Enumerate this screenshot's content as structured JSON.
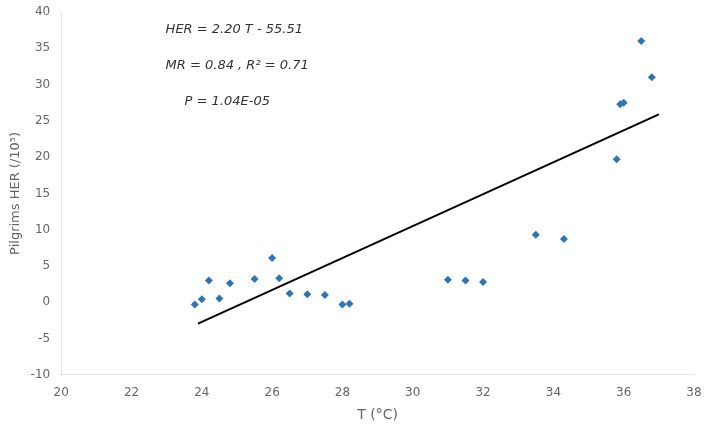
{
  "chart_data": {
    "type": "scatter",
    "xlabel": "T (°C)",
    "ylabel": "Pilgrims HER (/10⁵)",
    "annotations": [
      "HER = 2.20 T - 55.51",
      "MR = 0.84 , R² = 0.71",
      "P = 1.04E-05"
    ],
    "series": [
      {
        "type": "scatter",
        "x": [
          23.8,
          24.0,
          24.2,
          24.5,
          24.8,
          25.5,
          26.0,
          26.2,
          26.5,
          27.0,
          27.5,
          28.0,
          28.2,
          31.0,
          31.5,
          32.0,
          33.5,
          34.3,
          35.8,
          35.9,
          36.0,
          36.5,
          36.8
        ],
        "values": [
          -0.3,
          0.4,
          3.0,
          0.5,
          2.6,
          3.2,
          6.1,
          3.3,
          1.2,
          1.1,
          1.0,
          -0.3,
          -0.2,
          3.1,
          3.0,
          2.8,
          9.3,
          8.7,
          19.7,
          27.3,
          27.5,
          36.0,
          31.0
        ],
        "color": "#2E75B6",
        "marker": "diamond"
      },
      {
        "type": "line",
        "x": [
          23.89,
          37.0
        ],
        "values": [
          -2.952,
          25.89
        ],
        "color": "#000000",
        "line_style": "solid"
      }
    ],
    "xlim": [
      20,
      38
    ],
    "ylim": [
      -10,
      40
    ],
    "xticks": [
      20,
      22,
      24,
      26,
      28,
      30,
      32,
      34,
      36,
      38
    ],
    "yticks": [
      -10,
      -5,
      0,
      5,
      10,
      15,
      20,
      25,
      30,
      35,
      40
    ],
    "grid": false
  }
}
